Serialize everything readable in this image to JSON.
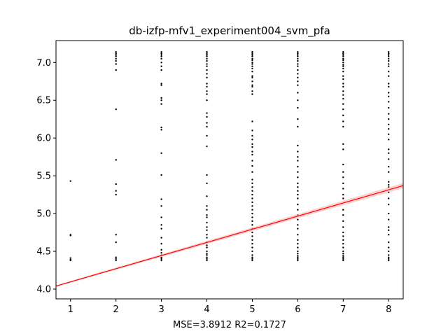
{
  "chart_data": {
    "type": "scatter",
    "title": "db-izfp-mfv1_experiment004_svm_pfa",
    "xlabel": "MSE=3.8912 R2=0.1727",
    "ylabel": "",
    "xlim": [
      0.68,
      8.32
    ],
    "ylim": [
      3.87,
      7.29
    ],
    "xticks": [
      1,
      2,
      3,
      4,
      5,
      6,
      7,
      8
    ],
    "yticks": [
      4.0,
      4.5,
      5.0,
      5.5,
      6.0,
      6.5,
      7.0
    ],
    "grid": false,
    "point_color": "#000000",
    "series": [
      {
        "points": [
          [
            1,
            5.43
          ],
          [
            1,
            4.72
          ],
          [
            1,
            4.71
          ],
          [
            1,
            4.41
          ],
          [
            1,
            4.39
          ],
          [
            1,
            4.38
          ],
          [
            2,
            7.14
          ],
          [
            2,
            7.12
          ],
          [
            2,
            7.1
          ],
          [
            2,
            7.08
          ],
          [
            2,
            7.05
          ],
          [
            2,
            7.02
          ],
          [
            2,
            6.98
          ],
          [
            2,
            6.9
          ],
          [
            2,
            6.38
          ],
          [
            2,
            5.71
          ],
          [
            2,
            5.39
          ],
          [
            2,
            5.3
          ],
          [
            2,
            5.25
          ],
          [
            2,
            4.72
          ],
          [
            2,
            4.62
          ],
          [
            2,
            4.42
          ],
          [
            2,
            4.4
          ],
          [
            2,
            4.38
          ],
          [
            3,
            7.14
          ],
          [
            3,
            7.12
          ],
          [
            3,
            7.1
          ],
          [
            3,
            7.08
          ],
          [
            3,
            7.05
          ],
          [
            3,
            7.0
          ],
          [
            3,
            6.95
          ],
          [
            3,
            6.9
          ],
          [
            3,
            6.72
          ],
          [
            3,
            6.7
          ],
          [
            3,
            6.53
          ],
          [
            3,
            6.5
          ],
          [
            3,
            6.45
          ],
          [
            3,
            6.14
          ],
          [
            3,
            6.11
          ],
          [
            3,
            5.8
          ],
          [
            3,
            5.51
          ],
          [
            3,
            5.19
          ],
          [
            3,
            5.1
          ],
          [
            3,
            4.95
          ],
          [
            3,
            4.85
          ],
          [
            3,
            4.8
          ],
          [
            3,
            4.68
          ],
          [
            3,
            4.6
          ],
          [
            3,
            4.52
          ],
          [
            3,
            4.48
          ],
          [
            3,
            4.45
          ],
          [
            3,
            4.42
          ],
          [
            3,
            4.4
          ],
          [
            3,
            4.38
          ],
          [
            4,
            7.14
          ],
          [
            4,
            7.12
          ],
          [
            4,
            7.1
          ],
          [
            4,
            7.08
          ],
          [
            4,
            7.05
          ],
          [
            4,
            7.02
          ],
          [
            4,
            6.98
          ],
          [
            4,
            6.95
          ],
          [
            4,
            6.9
          ],
          [
            4,
            6.85
          ],
          [
            4,
            6.8
          ],
          [
            4,
            6.72
          ],
          [
            4,
            6.68
          ],
          [
            4,
            6.62
          ],
          [
            4,
            6.58
          ],
          [
            4,
            6.5
          ],
          [
            4,
            6.33
          ],
          [
            4,
            6.28
          ],
          [
            4,
            6.2
          ],
          [
            4,
            6.15
          ],
          [
            4,
            6.03
          ],
          [
            4,
            5.89
          ],
          [
            4,
            5.51
          ],
          [
            4,
            5.4
          ],
          [
            4,
            5.23
          ],
          [
            4,
            5.1
          ],
          [
            4,
            5.05
          ],
          [
            4,
            4.98
          ],
          [
            4,
            4.95
          ],
          [
            4,
            4.88
          ],
          [
            4,
            4.82
          ],
          [
            4,
            4.78
          ],
          [
            4,
            4.72
          ],
          [
            4,
            4.68
          ],
          [
            4,
            4.62
          ],
          [
            4,
            4.58
          ],
          [
            4,
            4.55
          ],
          [
            4,
            4.5
          ],
          [
            4,
            4.47
          ],
          [
            4,
            4.45
          ],
          [
            4,
            4.42
          ],
          [
            4,
            4.4
          ],
          [
            4,
            4.38
          ],
          [
            5,
            7.14
          ],
          [
            5,
            7.12
          ],
          [
            5,
            7.1
          ],
          [
            5,
            7.08
          ],
          [
            5,
            7.05
          ],
          [
            5,
            7.03
          ],
          [
            5,
            7.0
          ],
          [
            5,
            6.98
          ],
          [
            5,
            6.95
          ],
          [
            5,
            6.92
          ],
          [
            5,
            6.88
          ],
          [
            5,
            6.82
          ],
          [
            5,
            6.8
          ],
          [
            5,
            6.75
          ],
          [
            5,
            6.7
          ],
          [
            5,
            6.68
          ],
          [
            5,
            6.62
          ],
          [
            5,
            6.58
          ],
          [
            5,
            6.22
          ],
          [
            5,
            6.1
          ],
          [
            5,
            6.03
          ],
          [
            5,
            5.98
          ],
          [
            5,
            5.92
          ],
          [
            5,
            5.88
          ],
          [
            5,
            5.82
          ],
          [
            5,
            5.78
          ],
          [
            5,
            5.7
          ],
          [
            5,
            5.63
          ],
          [
            5,
            5.55
          ],
          [
            5,
            5.45
          ],
          [
            5,
            5.4
          ],
          [
            5,
            5.35
          ],
          [
            5,
            5.3
          ],
          [
            5,
            5.25
          ],
          [
            5,
            5.2
          ],
          [
            5,
            5.15
          ],
          [
            5,
            5.1
          ],
          [
            5,
            5.05
          ],
          [
            5,
            5.0
          ],
          [
            5,
            4.95
          ],
          [
            5,
            4.9
          ],
          [
            5,
            4.85
          ],
          [
            5,
            4.8
          ],
          [
            5,
            4.75
          ],
          [
            5,
            4.7
          ],
          [
            5,
            4.65
          ],
          [
            5,
            4.6
          ],
          [
            5,
            4.55
          ],
          [
            5,
            4.5
          ],
          [
            5,
            4.45
          ],
          [
            5,
            4.42
          ],
          [
            5,
            4.4
          ],
          [
            5,
            4.38
          ],
          [
            6,
            7.14
          ],
          [
            6,
            7.12
          ],
          [
            6,
            7.1
          ],
          [
            6,
            7.08
          ],
          [
            6,
            7.05
          ],
          [
            6,
            7.02
          ],
          [
            6,
            6.98
          ],
          [
            6,
            6.95
          ],
          [
            6,
            6.9
          ],
          [
            6,
            6.85
          ],
          [
            6,
            6.8
          ],
          [
            6,
            6.75
          ],
          [
            6,
            6.7
          ],
          [
            6,
            6.6
          ],
          [
            6,
            6.5
          ],
          [
            6,
            6.4
          ],
          [
            6,
            6.25
          ],
          [
            6,
            6.15
          ],
          [
            6,
            5.9
          ],
          [
            6,
            5.82
          ],
          [
            6,
            5.75
          ],
          [
            6,
            5.7
          ],
          [
            6,
            5.62
          ],
          [
            6,
            5.55
          ],
          [
            6,
            5.48
          ],
          [
            6,
            5.4
          ],
          [
            6,
            5.35
          ],
          [
            6,
            5.3
          ],
          [
            6,
            5.25
          ],
          [
            6,
            5.2
          ],
          [
            6,
            5.12
          ],
          [
            6,
            5.05
          ],
          [
            6,
            4.98
          ],
          [
            6,
            4.92
          ],
          [
            6,
            4.85
          ],
          [
            6,
            4.8
          ],
          [
            6,
            4.72
          ],
          [
            6,
            4.65
          ],
          [
            6,
            4.6
          ],
          [
            6,
            4.55
          ],
          [
            6,
            4.5
          ],
          [
            6,
            4.47
          ],
          [
            6,
            4.44
          ],
          [
            6,
            4.42
          ],
          [
            6,
            4.4
          ],
          [
            6,
            4.38
          ],
          [
            7,
            7.14
          ],
          [
            7,
            7.12
          ],
          [
            7,
            7.1
          ],
          [
            7,
            7.08
          ],
          [
            7,
            7.05
          ],
          [
            7,
            7.03
          ],
          [
            7,
            7.0
          ],
          [
            7,
            6.97
          ],
          [
            7,
            6.95
          ],
          [
            7,
            6.92
          ],
          [
            7,
            6.88
          ],
          [
            7,
            6.82
          ],
          [
            7,
            6.78
          ],
          [
            7,
            6.72
          ],
          [
            7,
            6.68
          ],
          [
            7,
            6.62
          ],
          [
            7,
            6.57
          ],
          [
            7,
            6.52
          ],
          [
            7,
            6.45
          ],
          [
            7,
            6.38
          ],
          [
            7,
            6.3
          ],
          [
            7,
            6.22
          ],
          [
            7,
            6.15
          ],
          [
            7,
            5.92
          ],
          [
            7,
            5.85
          ],
          [
            7,
            5.65
          ],
          [
            7,
            5.55
          ],
          [
            7,
            5.48
          ],
          [
            7,
            5.4
          ],
          [
            7,
            5.33
          ],
          [
            7,
            5.25
          ],
          [
            7,
            5.2
          ],
          [
            7,
            5.05
          ],
          [
            7,
            4.98
          ],
          [
            7,
            4.9
          ],
          [
            7,
            4.82
          ],
          [
            7,
            4.75
          ],
          [
            7,
            4.7
          ],
          [
            7,
            4.65
          ],
          [
            7,
            4.6
          ],
          [
            7,
            4.55
          ],
          [
            7,
            4.5
          ],
          [
            7,
            4.47
          ],
          [
            7,
            4.44
          ],
          [
            7,
            4.42
          ],
          [
            7,
            4.4
          ],
          [
            7,
            4.38
          ],
          [
            8,
            7.14
          ],
          [
            8,
            7.12
          ],
          [
            8,
            7.1
          ],
          [
            8,
            7.08
          ],
          [
            8,
            7.05
          ],
          [
            8,
            7.02
          ],
          [
            8,
            6.98
          ],
          [
            8,
            6.95
          ],
          [
            8,
            6.88
          ],
          [
            8,
            6.82
          ],
          [
            8,
            6.72
          ],
          [
            8,
            6.68
          ],
          [
            8,
            6.6
          ],
          [
            8,
            6.55
          ],
          [
            8,
            6.48
          ],
          [
            8,
            6.4
          ],
          [
            8,
            6.32
          ],
          [
            8,
            6.25
          ],
          [
            8,
            6.18
          ],
          [
            8,
            6.12
          ],
          [
            8,
            6.05
          ],
          [
            8,
            5.98
          ],
          [
            8,
            5.85
          ],
          [
            8,
            5.8
          ],
          [
            8,
            5.72
          ],
          [
            8,
            5.62
          ],
          [
            8,
            5.55
          ],
          [
            8,
            5.42
          ],
          [
            8,
            5.38
          ],
          [
            8,
            5.35
          ],
          [
            8,
            5.28
          ],
          [
            8,
            5.2
          ],
          [
            8,
            5.12
          ],
          [
            8,
            5.0
          ],
          [
            8,
            4.92
          ],
          [
            8,
            4.82
          ],
          [
            8,
            4.78
          ],
          [
            8,
            4.72
          ],
          [
            8,
            4.62
          ],
          [
            8,
            4.55
          ],
          [
            8,
            4.5
          ],
          [
            8,
            4.45
          ],
          [
            8,
            4.42
          ],
          [
            8,
            4.4
          ],
          [
            8,
            4.38
          ]
        ]
      }
    ],
    "regression_line": {
      "color": "#ff0000",
      "band_color": "#ffb3b3",
      "start": [
        0.68,
        4.04
      ],
      "end": [
        8.32,
        5.37
      ],
      "band_halfwidth_start": 0.01,
      "band_halfwidth_end": 0.035
    }
  }
}
